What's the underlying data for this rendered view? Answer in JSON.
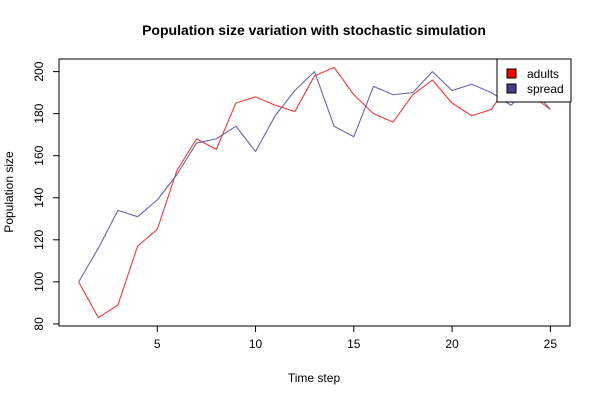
{
  "chart_data": {
    "type": "line",
    "title": "Population size variation with stochastic simulation",
    "xlabel": "Time step",
    "ylabel": "Population size",
    "xlim": [
      0,
      26
    ],
    "ylim": [
      79,
      206
    ],
    "x_ticks": [
      5,
      10,
      15,
      20,
      25
    ],
    "y_ticks": [
      80,
      100,
      120,
      140,
      160,
      180,
      200
    ],
    "grid": false,
    "legend_position": "top-right",
    "x": [
      1,
      2,
      3,
      4,
      5,
      6,
      7,
      8,
      9,
      10,
      11,
      12,
      13,
      14,
      15,
      16,
      17,
      18,
      19,
      20,
      21,
      22,
      23,
      24,
      25
    ],
    "series": [
      {
        "name": "adults",
        "color": "#ee3b3b",
        "legend_color": "#ff0000",
        "values": [
          100,
          83,
          89,
          117,
          125,
          153,
          168,
          163,
          185,
          188,
          184,
          181,
          198,
          202,
          189,
          180,
          176,
          189,
          196,
          185,
          179,
          182,
          196,
          189,
          182
        ]
      },
      {
        "name": "spread",
        "color": "#6b64a8",
        "legend_color": "#483d8b",
        "values": [
          100,
          116,
          134,
          131,
          139,
          151,
          166,
          168,
          174,
          162,
          179,
          191,
          200,
          174,
          169,
          193,
          189,
          190,
          200,
          191,
          194,
          190,
          184,
          193,
          182
        ]
      }
    ]
  }
}
